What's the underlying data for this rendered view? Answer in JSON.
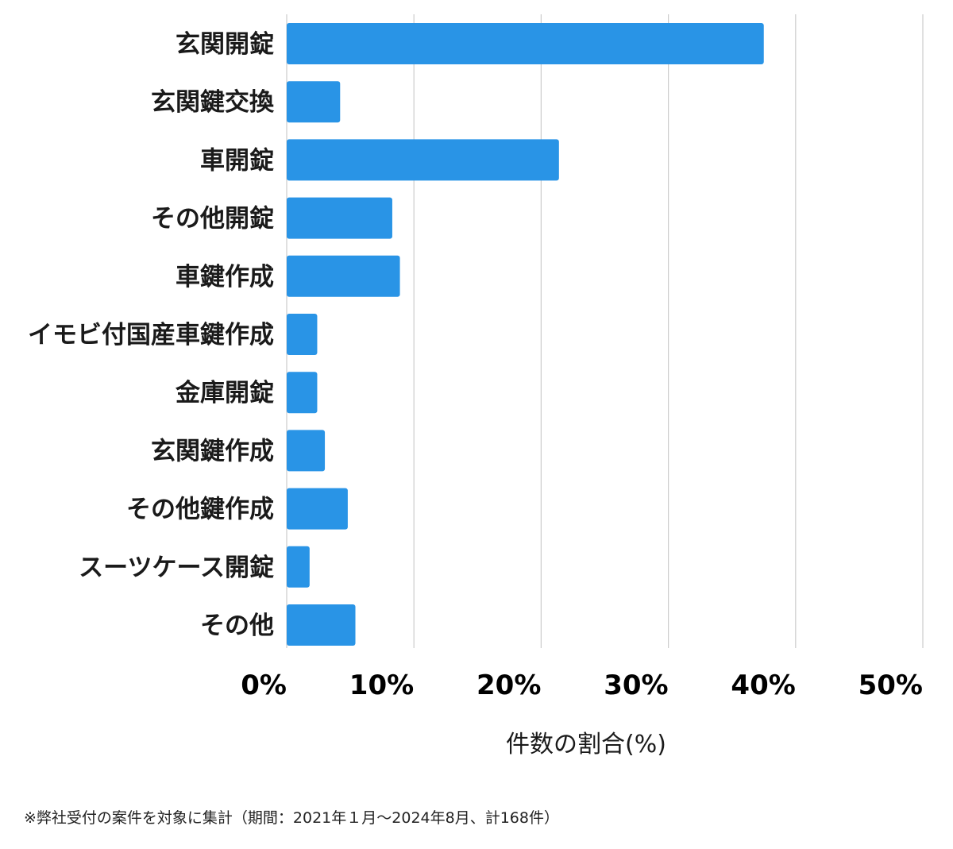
{
  "chart_data": {
    "type": "bar",
    "orientation": "horizontal",
    "categories": [
      "玄関開錠",
      "玄関鍵交換",
      "車開錠",
      "その他開錠",
      "車鍵作成",
      "イモビ付国産車鍵作成",
      "金庫開錠",
      "玄関鍵作成",
      "その他鍵作成",
      "スーツケース開錠",
      "その他"
    ],
    "values": [
      37.5,
      4.2,
      21.4,
      8.3,
      8.9,
      2.4,
      2.4,
      3.0,
      4.8,
      1.8,
      5.4
    ],
    "xlabel": "件数の割合(%)",
    "xlim": [
      0,
      50
    ],
    "xticks": [
      0,
      10,
      20,
      30,
      40,
      50
    ],
    "xtick_labels": [
      "0%",
      "10%",
      "20%",
      "30%",
      "40%",
      "50%"
    ],
    "grid": "vertical",
    "bar_color": "#2994e6",
    "grid_color": "#cccccc"
  },
  "footnote": "※弊社受付の案件を対象に集計（期間：2021年１月～2024年8月、計168件）"
}
